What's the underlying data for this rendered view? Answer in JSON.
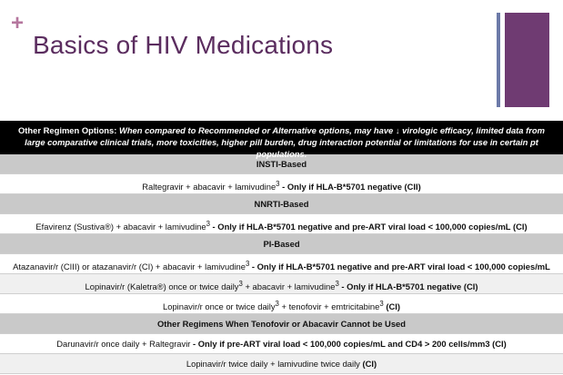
{
  "slide": {
    "plus": "+",
    "title": "Basics of HIV Medications"
  },
  "colors": {
    "title": "#5b2d5f",
    "plus": "#b5779e",
    "deco_bar": "#6f3b72",
    "deco_line": "#6c7aa8",
    "section_bg": "#c9c9c9",
    "header_bg": "#000000"
  },
  "table": {
    "header_label": "Other Regimen Options:",
    "header_text": "When compared to Recommended or Alternative options, may have ↓ virologic efficacy, limited data from large comparative clinical trials, more toxicities, higher pill burden, drug interaction potential or limitations for use in certain pt populations.",
    "sections": [
      {
        "title": "INSTI-Based",
        "rows": [
          {
            "text": "Raltegravir + abacavir + lamivudine",
            "sup": "3",
            "bold": " - Only if HLA-B*5701 negative (CII)"
          }
        ]
      },
      {
        "title": "NNRTI-Based",
        "rows": [
          {
            "text": "Efavirenz (Sustiva®) + abacavir + lamivudine",
            "sup": "3",
            "bold": " - Only if HLA-B*5701 negative and pre-ART viral load < 100,000 copies/mL (CI)"
          }
        ]
      },
      {
        "title": "PI-Based",
        "rows": [
          {
            "text": "Atazanavir/r (CIII) or atazanavir/r (CI) + abacavir + lamivudine",
            "sup": "3",
            "bold": " - Only if HLA-B*5701 negative and pre-ART viral load < 100,000 copies/mL"
          },
          {
            "text": "Lopinavir/r (Kaletra®) once or twice daily",
            "sup": "3",
            "text2": " + abacavir + lamivudine",
            "sup2": "3",
            "bold": " - Only if HLA-B*5701 negative (CI)"
          },
          {
            "text": "Lopinavir/r once or twice daily",
            "sup": "3",
            "text2": " + tenofovir + emtricitabine",
            "sup2": "3",
            "bold": " (CI)"
          }
        ]
      },
      {
        "title": "Other Regimens When Tenofovir or Abacavir Cannot be Used",
        "rows": [
          {
            "text": "Darunavir/r once daily + Raltegravir",
            "bold": " - Only if pre-ART viral load < 100,000 copies/mL and CD4 > 200 cells/mm3 (CI)"
          },
          {
            "text": "Lopinavir/r twice daily + lamivudine twice daily",
            "bold": " (CI)"
          }
        ]
      }
    ]
  }
}
